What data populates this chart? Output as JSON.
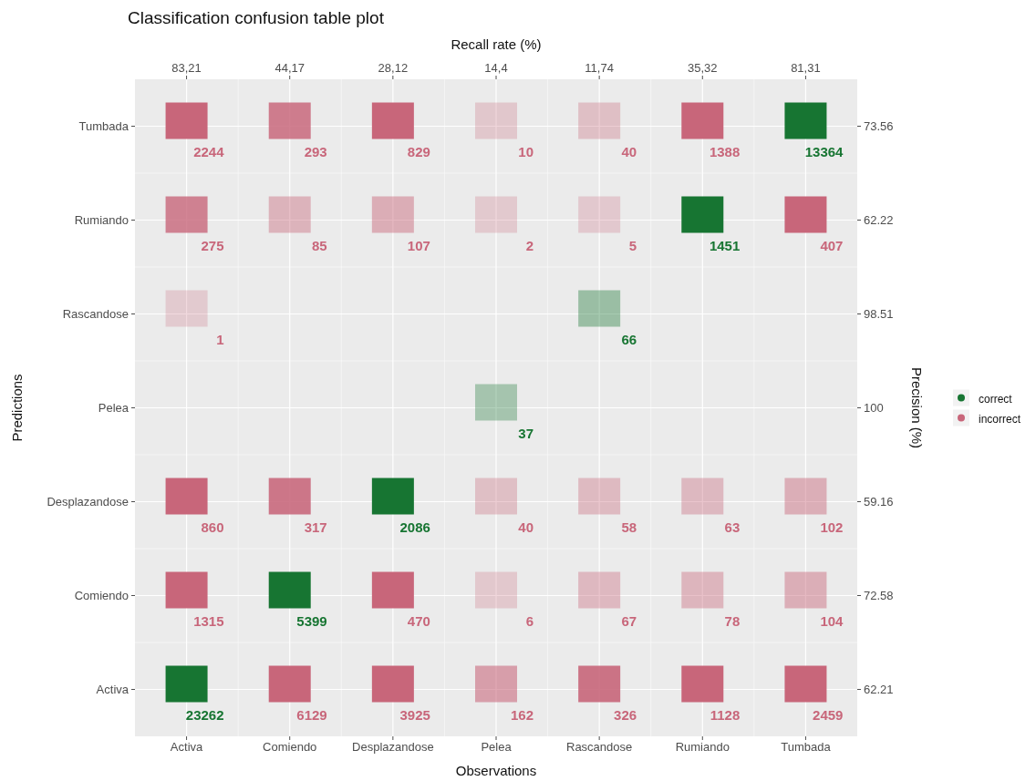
{
  "chart_data": {
    "type": "heatmap",
    "title": "Classification confusion table plot",
    "xlabel": "Observations",
    "ylabel": "Predictions",
    "x2label": "Recall rate (%)",
    "y2label": "Precision (%)",
    "categories": [
      "Activa",
      "Comiendo",
      "Desplazandose",
      "Pelea",
      "Rascandose",
      "Rumiando",
      "Tumbada"
    ],
    "y_categories": [
      "Tumbada",
      "Rumiando",
      "Rascandose",
      "Pelea",
      "Desplazandose",
      "Comiendo",
      "Activa"
    ],
    "y2_categories": [
      "73.56",
      "62.22",
      "98.51",
      "100",
      "59.16",
      "72.58",
      "62.21"
    ],
    "cells": [
      [
        2244,
        293,
        829,
        10,
        40,
        1388,
        13364
      ],
      [
        275,
        85,
        107,
        2,
        5,
        1451,
        407
      ],
      [
        1,
        null,
        null,
        null,
        66,
        null,
        null
      ],
      [
        null,
        null,
        null,
        37,
        null,
        null,
        null
      ],
      [
        860,
        317,
        2086,
        40,
        58,
        63,
        102
      ],
      [
        1315,
        5399,
        470,
        6,
        67,
        78,
        104
      ],
      [
        23262,
        6129,
        3925,
        162,
        326,
        1128,
        2459
      ]
    ],
    "series": [
      {
        "name": "correct",
        "color": "#177532",
        "values": [
          null,
          null,
          null,
          null,
          null,
          null,
          null
        ]
      },
      {
        "name": "incorrect",
        "color": "#c8667a",
        "values": [
          null,
          null,
          null,
          null,
          null,
          null,
          null
        ]
      }
    ],
    "annotations": [
      "83,21",
      "44,17",
      "28,12",
      "14,4",
      "11,74",
      "35,32",
      "81,31"
    ],
    "data_labels": true,
    "grid": true,
    "legend": "right"
  }
}
